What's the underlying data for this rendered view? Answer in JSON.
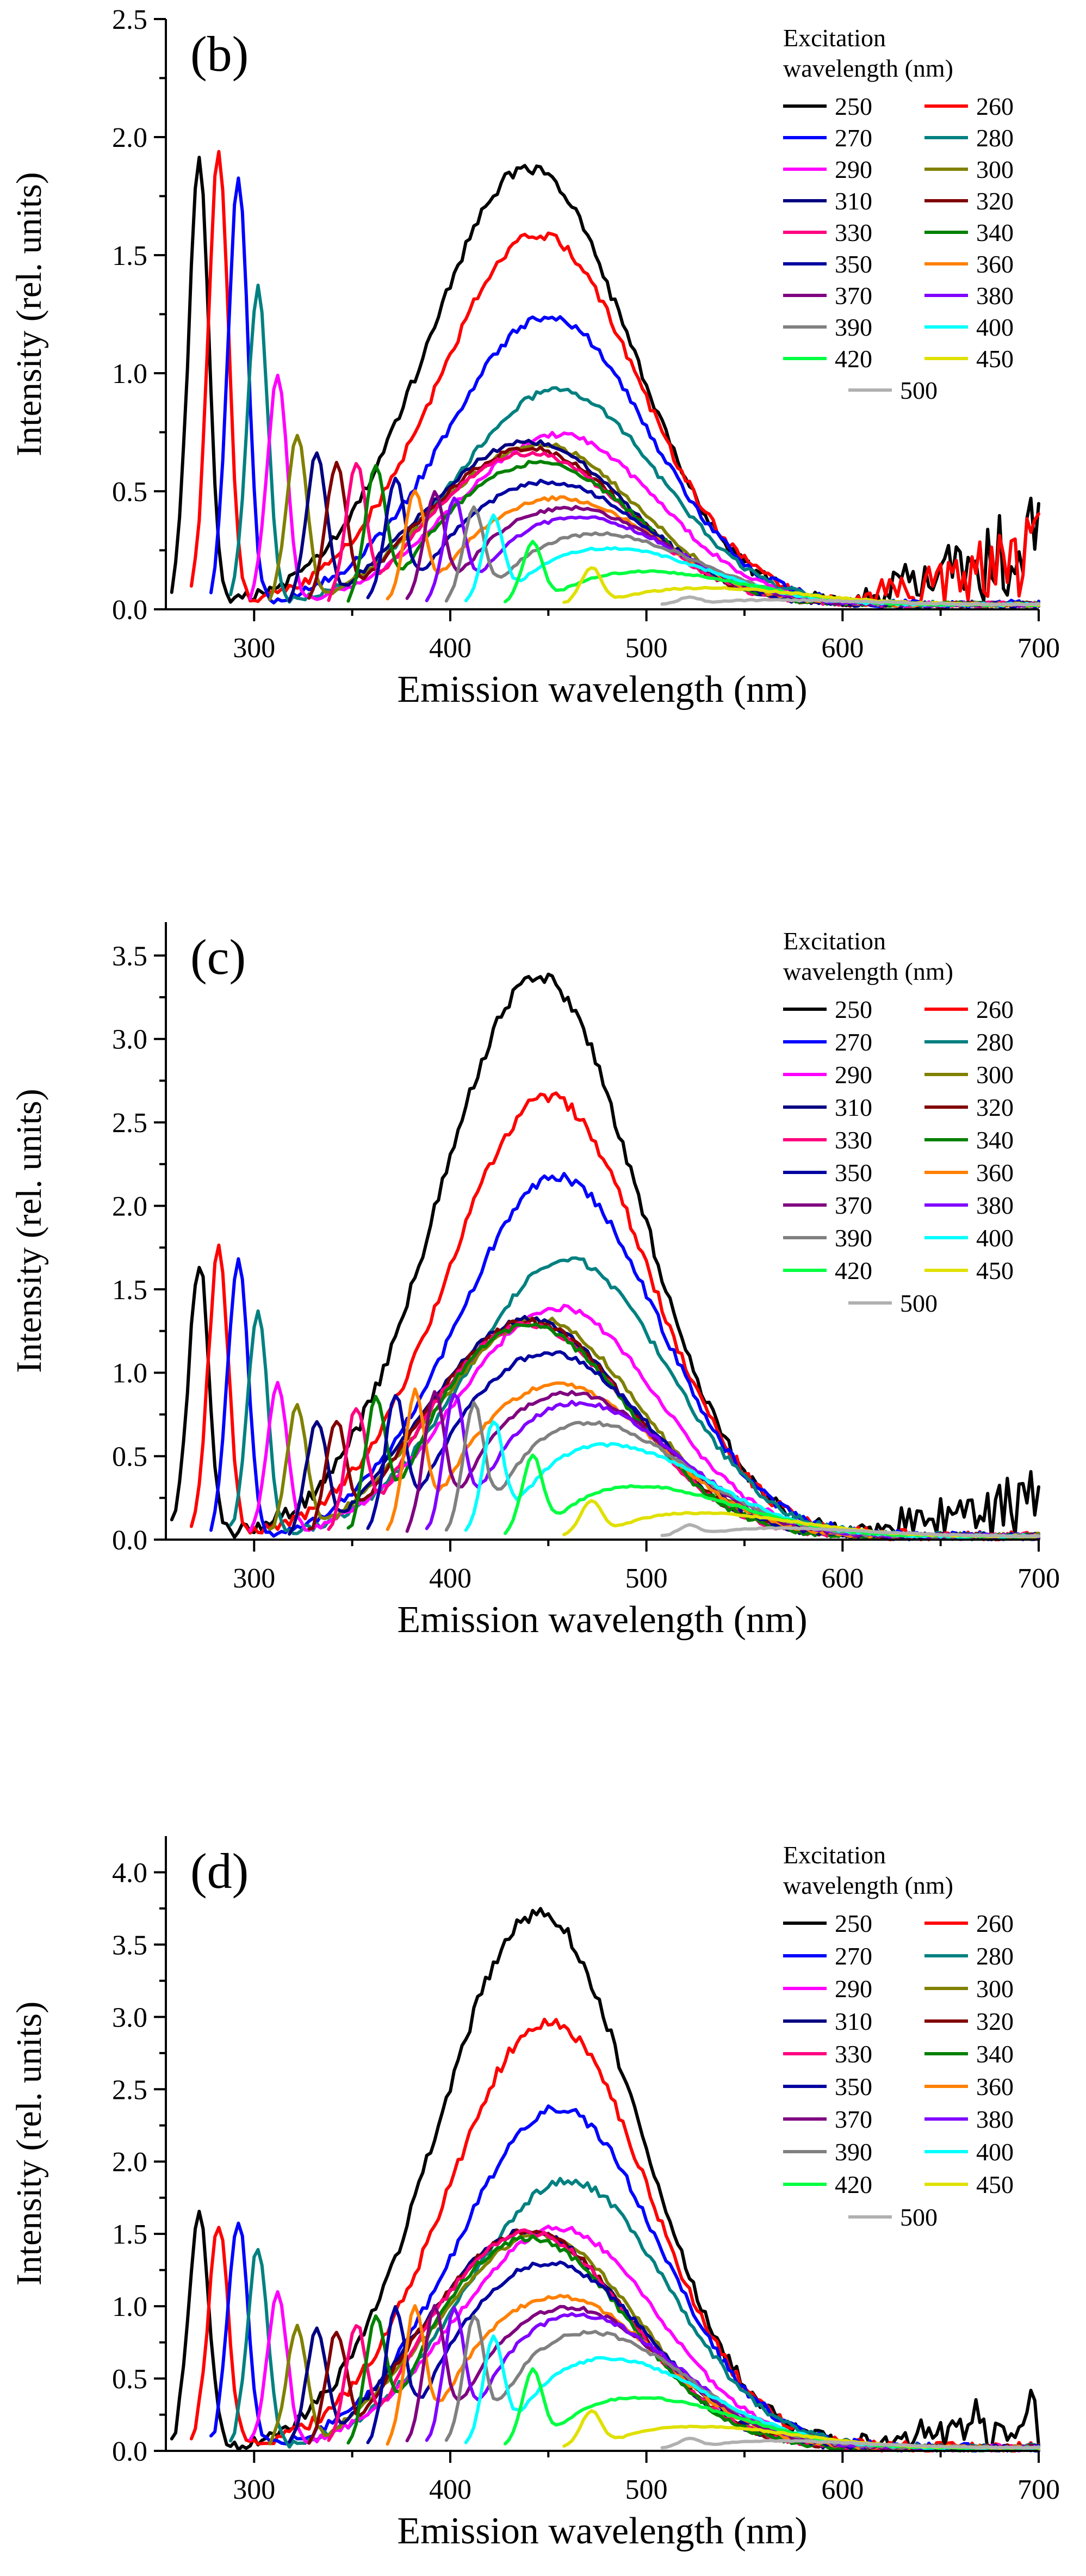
{
  "chart_data": [
    {
      "type": "line",
      "panel_label": "(b)",
      "xlabel": "Emission wavelength (nm)",
      "ylabel": "Intensity (rel. units)",
      "xlim": [
        255,
        700
      ],
      "ylim": [
        0,
        2.5
      ],
      "xticks": [
        300,
        400,
        500,
        600,
        700
      ],
      "yticks": [
        0.0,
        0.5,
        1.0,
        1.5,
        2.0,
        2.5
      ],
      "ytick_labels": [
        "0.0",
        "0.5",
        "1.0",
        "1.5",
        "2.0",
        "2.5"
      ],
      "legend_title_lines": [
        "Excitation",
        "wavelength (nm)"
      ],
      "series": [
        {
          "name": "250",
          "excitation": 250,
          "color": "#000000",
          "scatter_peak": 1.88,
          "broad_peak": 1.85,
          "broad_center": 440,
          "tail": 0.45
        },
        {
          "name": "260",
          "excitation": 260,
          "color": "#ff0000",
          "scatter_peak": 1.92,
          "broad_peak": 1.57,
          "broad_center": 445,
          "tail": 0.4
        },
        {
          "name": "270",
          "excitation": 270,
          "color": "#0000ff",
          "scatter_peak": 1.79,
          "broad_peak": 1.22,
          "broad_center": 450,
          "tail": 0.05
        },
        {
          "name": "280",
          "excitation": 280,
          "color": "#008080",
          "scatter_peak": 1.33,
          "broad_peak": 0.91,
          "broad_center": 455,
          "tail": 0.04
        },
        {
          "name": "290",
          "excitation": 290,
          "color": "#ff00ff",
          "scatter_peak": 0.96,
          "broad_peak": 0.72,
          "broad_center": 455,
          "tail": 0.04
        },
        {
          "name": "300",
          "excitation": 300,
          "color": "#808000",
          "scatter_peak": 0.71,
          "broad_peak": 0.68,
          "broad_center": 445,
          "tail": 0.03
        },
        {
          "name": "310",
          "excitation": 310,
          "color": "#000080",
          "scatter_peak": 0.63,
          "broad_peak": 0.69,
          "broad_center": 440,
          "tail": 0.03
        },
        {
          "name": "320",
          "excitation": 320,
          "color": "#800000",
          "scatter_peak": 0.58,
          "broad_peak": 0.66,
          "broad_center": 440,
          "tail": 0.03
        },
        {
          "name": "330",
          "excitation": 330,
          "color": "#ff0080",
          "scatter_peak": 0.57,
          "broad_peak": 0.64,
          "broad_center": 440,
          "tail": 0.03
        },
        {
          "name": "340",
          "excitation": 340,
          "color": "#008000",
          "scatter_peak": 0.56,
          "broad_peak": 0.6,
          "broad_center": 445,
          "tail": 0.03
        },
        {
          "name": "350",
          "excitation": 350,
          "color": "#0000a0",
          "scatter_peak": 0.5,
          "broad_peak": 0.52,
          "broad_center": 450,
          "tail": 0.03
        },
        {
          "name": "360",
          "excitation": 360,
          "color": "#ff8000",
          "scatter_peak": 0.45,
          "broad_peak": 0.45,
          "broad_center": 455,
          "tail": 0.03
        },
        {
          "name": "370",
          "excitation": 370,
          "color": "#800080",
          "scatter_peak": 0.44,
          "broad_peak": 0.41,
          "broad_center": 460,
          "tail": 0.03
        },
        {
          "name": "380",
          "excitation": 380,
          "color": "#8000ff",
          "scatter_peak": 0.42,
          "broad_peak": 0.37,
          "broad_center": 465,
          "tail": 0.02
        },
        {
          "name": "390",
          "excitation": 390,
          "color": "#808080",
          "scatter_peak": 0.38,
          "broad_peak": 0.3,
          "broad_center": 475,
          "tail": 0.02
        },
        {
          "name": "400",
          "excitation": 400,
          "color": "#00ffff",
          "scatter_peak": 0.35,
          "broad_peak": 0.24,
          "broad_center": 480,
          "tail": 0.02
        },
        {
          "name": "420",
          "excitation": 420,
          "color": "#00ff40",
          "scatter_peak": 0.25,
          "broad_peak": 0.14,
          "broad_center": 500,
          "tail": 0.01
        },
        {
          "name": "450",
          "excitation": 450,
          "color": "#e0e000",
          "scatter_peak": 0.15,
          "broad_peak": 0.07,
          "broad_center": 530,
          "tail": 0.01
        },
        {
          "name": "500",
          "excitation": 500,
          "color": "#b0b0b0",
          "scatter_peak": 0.03,
          "broad_peak": 0.02,
          "broad_center": 560,
          "tail": 0.01
        }
      ]
    },
    {
      "type": "line",
      "panel_label": "(c)",
      "xlabel": "Emission wavelength (nm)",
      "ylabel": "Intensity (rel. units)",
      "xlim": [
        255,
        700
      ],
      "ylim": [
        0,
        3.7
      ],
      "xticks": [
        300,
        400,
        500,
        600,
        700
      ],
      "yticks": [
        0.0,
        0.5,
        1.0,
        1.5,
        2.0,
        2.5,
        3.0,
        3.5
      ],
      "ytick_labels": [
        "0.0",
        "0.5",
        "1.0",
        "1.5",
        "2.0",
        "2.5",
        "3.0",
        "3.5"
      ],
      "legend_title_lines": [
        "Excitation",
        "wavelength (nm)"
      ],
      "series": [
        {
          "name": "250",
          "excitation": 250,
          "color": "#000000",
          "scatter_peak": 1.64,
          "broad_peak": 3.35,
          "broad_center": 445,
          "tail": 0.45
        },
        {
          "name": "260",
          "excitation": 260,
          "color": "#ff0000",
          "scatter_peak": 1.71,
          "broad_peak": 2.63,
          "broad_center": 450,
          "tail": 0.12
        },
        {
          "name": "270",
          "excitation": 270,
          "color": "#0000ff",
          "scatter_peak": 1.66,
          "broad_peak": 2.15,
          "broad_center": 455,
          "tail": 0.1
        },
        {
          "name": "280",
          "excitation": 280,
          "color": "#008080",
          "scatter_peak": 1.33,
          "broad_peak": 1.66,
          "broad_center": 460,
          "tail": 0.08
        },
        {
          "name": "290",
          "excitation": 290,
          "color": "#ff00ff",
          "scatter_peak": 0.9,
          "broad_peak": 1.37,
          "broad_center": 455,
          "tail": 0.08
        },
        {
          "name": "300",
          "excitation": 300,
          "color": "#808000",
          "scatter_peak": 0.76,
          "broad_peak": 1.3,
          "broad_center": 445,
          "tail": 0.06
        },
        {
          "name": "310",
          "excitation": 310,
          "color": "#000080",
          "scatter_peak": 0.67,
          "broad_peak": 1.3,
          "broad_center": 440,
          "tail": 0.06
        },
        {
          "name": "320",
          "excitation": 320,
          "color": "#800000",
          "scatter_peak": 0.66,
          "broad_peak": 1.29,
          "broad_center": 440,
          "tail": 0.06
        },
        {
          "name": "330",
          "excitation": 330,
          "color": "#ff0080",
          "scatter_peak": 0.72,
          "broad_peak": 1.27,
          "broad_center": 440,
          "tail": 0.06
        },
        {
          "name": "340",
          "excitation": 340,
          "color": "#008000",
          "scatter_peak": 0.76,
          "broad_peak": 1.26,
          "broad_center": 440,
          "tail": 0.06
        },
        {
          "name": "350",
          "excitation": 350,
          "color": "#0000a0",
          "scatter_peak": 0.78,
          "broad_peak": 1.1,
          "broad_center": 450,
          "tail": 0.05
        },
        {
          "name": "360",
          "excitation": 360,
          "color": "#ff8000",
          "scatter_peak": 0.8,
          "broad_peak": 0.91,
          "broad_center": 455,
          "tail": 0.05
        },
        {
          "name": "370",
          "excitation": 370,
          "color": "#800080",
          "scatter_peak": 0.8,
          "broad_peak": 0.86,
          "broad_center": 460,
          "tail": 0.05
        },
        {
          "name": "380",
          "excitation": 380,
          "color": "#8000ff",
          "scatter_peak": 0.78,
          "broad_peak": 0.8,
          "broad_center": 465,
          "tail": 0.05
        },
        {
          "name": "390",
          "excitation": 390,
          "color": "#808080",
          "scatter_peak": 0.72,
          "broad_peak": 0.68,
          "broad_center": 470,
          "tail": 0.05
        },
        {
          "name": "400",
          "excitation": 400,
          "color": "#00ffff",
          "scatter_peak": 0.63,
          "broad_peak": 0.55,
          "broad_center": 480,
          "tail": 0.06
        },
        {
          "name": "420",
          "excitation": 420,
          "color": "#00ff40",
          "scatter_peak": 0.45,
          "broad_peak": 0.3,
          "broad_center": 495,
          "tail": 0.02
        },
        {
          "name": "450",
          "excitation": 450,
          "color": "#e0e000",
          "scatter_peak": 0.2,
          "broad_peak": 0.14,
          "broad_center": 525,
          "tail": 0.02
        },
        {
          "name": "500",
          "excitation": 500,
          "color": "#b0b0b0",
          "scatter_peak": 0.06,
          "broad_peak": 0.05,
          "broad_center": 560,
          "tail": 0.03
        }
      ]
    },
    {
      "type": "line",
      "panel_label": "(d)",
      "xlabel": "Emission wavelength (nm)",
      "ylabel": "Intensity (rel. units)",
      "xlim": [
        255,
        700
      ],
      "ylim": [
        0,
        4.25
      ],
      "xticks": [
        300,
        400,
        500,
        600,
        700
      ],
      "yticks": [
        0.0,
        0.5,
        1.0,
        1.5,
        2.0,
        2.5,
        3.0,
        3.5,
        4.0
      ],
      "ytick_labels": [
        "0.0",
        "0.5",
        "1.0",
        "1.5",
        "2.0",
        "2.5",
        "3.0",
        "3.5",
        "4.0"
      ],
      "legend_title_lines": [
        "Excitation",
        "wavelength (nm)"
      ],
      "series": [
        {
          "name": "250",
          "excitation": 250,
          "color": "#000000",
          "scatter_peak": 1.62,
          "broad_peak": 3.7,
          "broad_center": 445,
          "tail": 0.45
        },
        {
          "name": "260",
          "excitation": 260,
          "color": "#ff0000",
          "scatter_peak": 1.52,
          "broad_peak": 2.95,
          "broad_center": 450,
          "tail": 0.12
        },
        {
          "name": "270",
          "excitation": 270,
          "color": "#0000ff",
          "scatter_peak": 1.56,
          "broad_peak": 2.35,
          "broad_center": 455,
          "tail": 0.1
        },
        {
          "name": "280",
          "excitation": 280,
          "color": "#008080",
          "scatter_peak": 1.38,
          "broad_peak": 1.85,
          "broad_center": 460,
          "tail": 0.1
        },
        {
          "name": "290",
          "excitation": 290,
          "color": "#ff00ff",
          "scatter_peak": 1.05,
          "broad_peak": 1.52,
          "broad_center": 455,
          "tail": 0.08
        },
        {
          "name": "300",
          "excitation": 300,
          "color": "#808000",
          "scatter_peak": 0.82,
          "broad_peak": 1.47,
          "broad_center": 445,
          "tail": 0.06
        },
        {
          "name": "310",
          "excitation": 310,
          "color": "#000080",
          "scatter_peak": 0.78,
          "broad_peak": 1.5,
          "broad_center": 440,
          "tail": 0.06
        },
        {
          "name": "320",
          "excitation": 320,
          "color": "#800000",
          "scatter_peak": 0.76,
          "broad_peak": 1.5,
          "broad_center": 440,
          "tail": 0.06
        },
        {
          "name": "330",
          "excitation": 330,
          "color": "#ff0080",
          "scatter_peak": 0.79,
          "broad_peak": 1.49,
          "broad_center": 440,
          "tail": 0.06
        },
        {
          "name": "340",
          "excitation": 340,
          "color": "#008000",
          "scatter_peak": 0.83,
          "broad_peak": 1.45,
          "broad_center": 440,
          "tail": 0.06
        },
        {
          "name": "350",
          "excitation": 350,
          "color": "#0000a0",
          "scatter_peak": 0.88,
          "broad_peak": 1.28,
          "broad_center": 450,
          "tail": 0.05
        },
        {
          "name": "360",
          "excitation": 360,
          "color": "#ff8000",
          "scatter_peak": 0.9,
          "broad_peak": 1.05,
          "broad_center": 455,
          "tail": 0.05
        },
        {
          "name": "370",
          "excitation": 370,
          "color": "#800080",
          "scatter_peak": 0.9,
          "broad_peak": 0.97,
          "broad_center": 460,
          "tail": 0.05
        },
        {
          "name": "380",
          "excitation": 380,
          "color": "#8000ff",
          "scatter_peak": 0.88,
          "broad_peak": 0.92,
          "broad_center": 465,
          "tail": 0.05
        },
        {
          "name": "390",
          "excitation": 390,
          "color": "#808080",
          "scatter_peak": 0.83,
          "broad_peak": 0.8,
          "broad_center": 470,
          "tail": 0.05
        },
        {
          "name": "400",
          "excitation": 400,
          "color": "#00ffff",
          "scatter_peak": 0.7,
          "broad_peak": 0.62,
          "broad_center": 480,
          "tail": 0.05
        },
        {
          "name": "420",
          "excitation": 420,
          "color": "#00ff40",
          "scatter_peak": 0.5,
          "broad_peak": 0.35,
          "broad_center": 495,
          "tail": 0.02
        },
        {
          "name": "450",
          "excitation": 450,
          "color": "#e0e000",
          "scatter_peak": 0.24,
          "broad_peak": 0.15,
          "broad_center": 525,
          "tail": 0.02
        },
        {
          "name": "500",
          "excitation": 500,
          "color": "#b0b0b0",
          "scatter_peak": 0.06,
          "broad_peak": 0.05,
          "broad_center": 560,
          "tail": 0.03
        }
      ]
    }
  ]
}
